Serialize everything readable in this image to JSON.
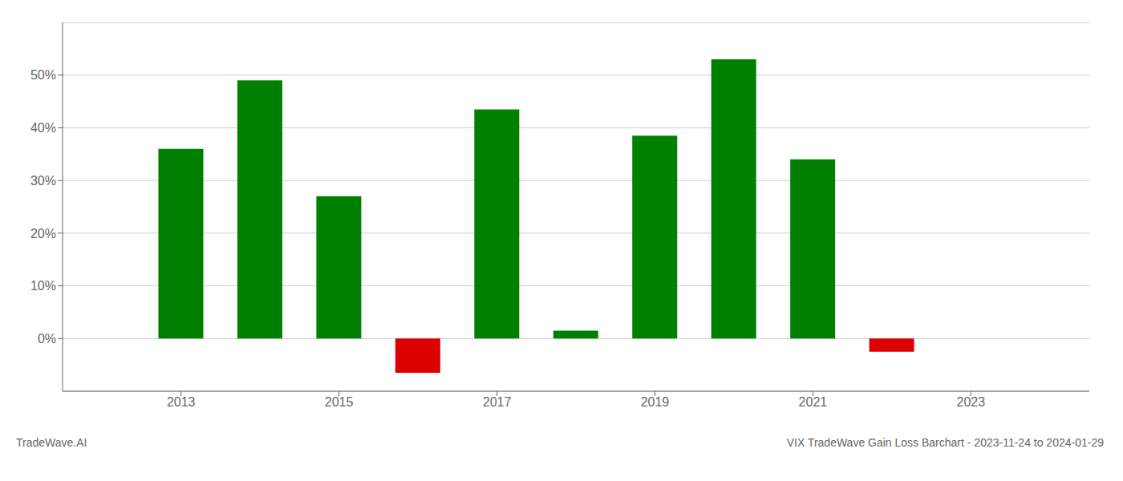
{
  "chart_data": {
    "type": "bar",
    "title": "VIX TradeWave Gain Loss Barchart - 2023-11-24 to 2024-01-29",
    "annotations": [
      "TradeWave.AI"
    ],
    "x": [
      2013,
      2014,
      2015,
      2016,
      2017,
      2018,
      2019,
      2020,
      2021,
      2022
    ],
    "values": [
      36.0,
      49.0,
      27.0,
      -6.5,
      43.5,
      1.5,
      38.5,
      53.0,
      34.0,
      -2.5
    ],
    "colors": [
      "#008000",
      "#008000",
      "#008000",
      "#dd0000",
      "#008000",
      "#008000",
      "#008000",
      "#008000",
      "#008000",
      "#dd0000"
    ],
    "xlim": [
      2011.5,
      2024.5
    ],
    "xticks": [
      2013,
      2015,
      2017,
      2019,
      2021,
      2023
    ],
    "ylim": [
      -10,
      60
    ],
    "yticks": [
      {
        "value": 0,
        "label": "0%"
      },
      {
        "value": 10,
        "label": "10%"
      },
      {
        "value": 20,
        "label": "20%"
      },
      {
        "value": 30,
        "label": "30%"
      },
      {
        "value": 40,
        "label": "40%"
      },
      {
        "value": 50,
        "label": "50%"
      }
    ],
    "grid": true
  }
}
